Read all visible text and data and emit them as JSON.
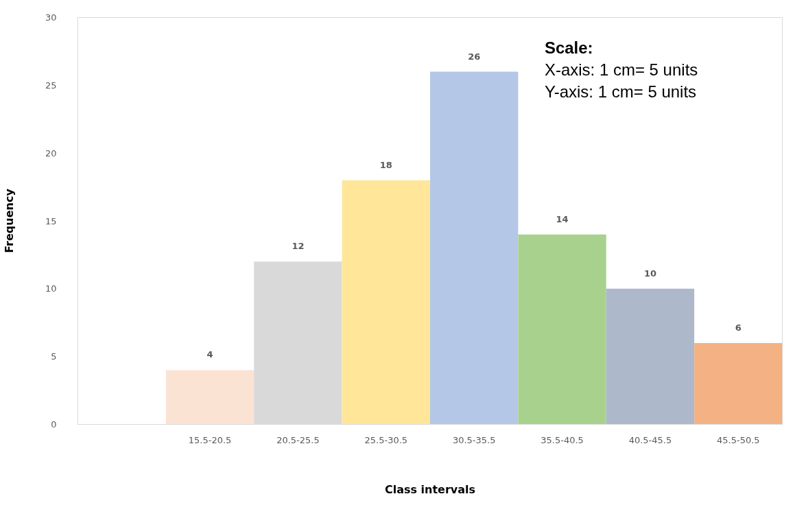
{
  "chart_data": {
    "type": "bar",
    "xlabel": "Class intervals",
    "ylabel": "Frequency",
    "categories": [
      null,
      "15.5-20.5",
      "20.5-25.5",
      "25.5-30.5",
      "30.5-35.5",
      "35.5-40.5",
      "40.5-45.5",
      "45.5-50.5"
    ],
    "values": [
      null,
      4,
      12,
      18,
      26,
      14,
      10,
      6
    ],
    "colors": [
      "#ffffff",
      "#fbe3d4",
      "#d9d9d9",
      "#ffe699",
      "#b4c7e7",
      "#a9d18e",
      "#adb9ca",
      "#f4b183"
    ],
    "ylim": [
      0,
      30
    ],
    "yticks": [
      0,
      5,
      10,
      15,
      20,
      25,
      30
    ],
    "data_labels": true,
    "grid": false,
    "annotations": [
      "Scale:",
      "X-axis: 1 cm= 5 units",
      "Y-axis: 1 cm= 5 units"
    ]
  }
}
